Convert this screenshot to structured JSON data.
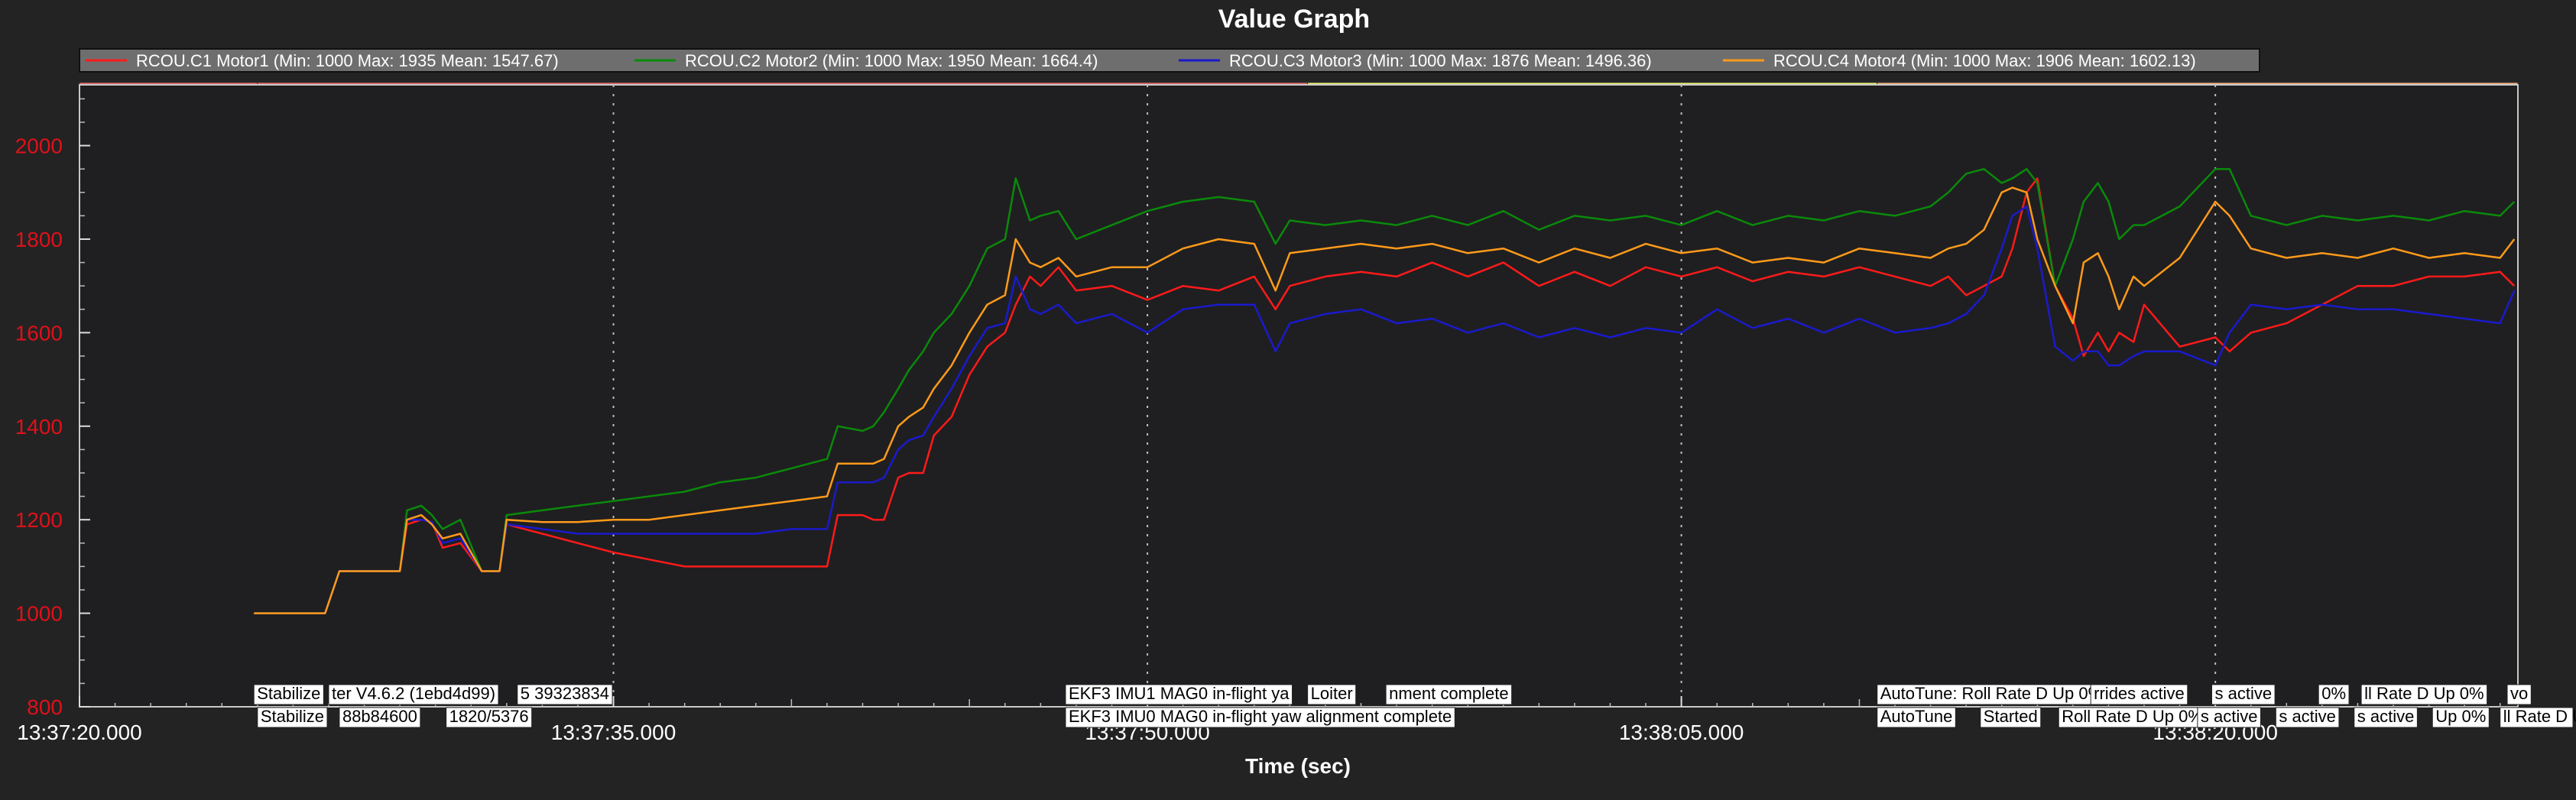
{
  "window": {
    "title": "Value Graph"
  },
  "chart_data": {
    "type": "line",
    "title": "Value Graph",
    "xlabel": "Time (sec)",
    "ylabel": "",
    "x_tick_labels": [
      "13:37:20.000",
      "13:37:35.000",
      "13:37:50.000",
      "13:38:05.000",
      "13:38:20.000"
    ],
    "x_tick_seconds": [
      0,
      15,
      30,
      45,
      60
    ],
    "xlim_seconds": [
      0,
      68.5
    ],
    "y_ticks": [
      800,
      1000,
      1200,
      1400,
      1600,
      1800,
      2000
    ],
    "ylim": [
      800,
      2130
    ],
    "grid": true,
    "legend_position": "top",
    "x_seconds": [
      4.9,
      6.9,
      7.3,
      8.1,
      8.8,
      9.0,
      9.2,
      9.6,
      9.9,
      10.2,
      10.7,
      11.3,
      11.5,
      11.8,
      12.0,
      13.0,
      14.0,
      15.0,
      16.0,
      17.0,
      18.0,
      19.0,
      20.0,
      21.0,
      21.3,
      22.0,
      22.3,
      22.6,
      23.0,
      23.3,
      23.7,
      24.0,
      24.5,
      25.0,
      25.5,
      26.0,
      26.3,
      26.7,
      27.0,
      27.5,
      28.0,
      29.0,
      30.0,
      31.0,
      32.0,
      33.0,
      33.6,
      34.0,
      35.0,
      36.0,
      37.0,
      38.0,
      39.0,
      40.0,
      41.0,
      42.0,
      43.0,
      44.0,
      45.0,
      46.0,
      47.0,
      48.0,
      49.0,
      50.0,
      51.0,
      52.0,
      52.5,
      53.0,
      53.5,
      54.0,
      54.3,
      54.7,
      55.0,
      55.5,
      56.0,
      56.3,
      56.7,
      57.0,
      57.3,
      57.7,
      58.0,
      59.0,
      60.0,
      60.4,
      61.0,
      62.0,
      63.0,
      64.0,
      65.0,
      66.0,
      67.0,
      68.0,
      68.4
    ],
    "series": [
      {
        "name": "RCOU.C1 Motor1 (Min: 1000 Max: 1935 Mean: 1547.67)",
        "color": "#ff1a1a",
        "values": [
          1000,
          1000,
          1090,
          1090,
          1090,
          1090,
          1190,
          1200,
          1195,
          1140,
          1150,
          1090,
          1090,
          1090,
          1190,
          1170,
          1150,
          1130,
          1115,
          1100,
          1100,
          1100,
          1100,
          1100,
          1210,
          1210,
          1200,
          1200,
          1290,
          1300,
          1300,
          1380,
          1420,
          1510,
          1570,
          1600,
          1660,
          1720,
          1700,
          1740,
          1690,
          1700,
          1670,
          1700,
          1690,
          1720,
          1650,
          1700,
          1720,
          1730,
          1720,
          1750,
          1720,
          1750,
          1700,
          1730,
          1700,
          1740,
          1720,
          1740,
          1710,
          1730,
          1720,
          1740,
          1720,
          1700,
          1720,
          1680,
          1700,
          1720,
          1780,
          1900,
          1930,
          1700,
          1630,
          1550,
          1600,
          1560,
          1600,
          1580,
          1660,
          1570,
          1590,
          1560,
          1600,
          1620,
          1660,
          1700,
          1700,
          1720,
          1720,
          1730,
          1700
        ]
      },
      {
        "name": "RCOU.C2 Motor2 (Min: 1000 Max: 1950 Mean: 1664.4)",
        "color": "#0a8a0a",
        "values": [
          1000,
          1000,
          1090,
          1090,
          1090,
          1090,
          1220,
          1230,
          1210,
          1180,
          1200,
          1090,
          1090,
          1090,
          1210,
          1220,
          1230,
          1240,
          1250,
          1260,
          1280,
          1290,
          1310,
          1330,
          1400,
          1390,
          1400,
          1430,
          1480,
          1520,
          1560,
          1600,
          1640,
          1700,
          1780,
          1800,
          1930,
          1840,
          1850,
          1860,
          1800,
          1830,
          1860,
          1880,
          1890,
          1880,
          1790,
          1840,
          1830,
          1840,
          1830,
          1850,
          1830,
          1860,
          1820,
          1850,
          1840,
          1850,
          1830,
          1860,
          1830,
          1850,
          1840,
          1860,
          1850,
          1870,
          1900,
          1940,
          1950,
          1920,
          1930,
          1950,
          1920,
          1700,
          1800,
          1880,
          1920,
          1880,
          1800,
          1830,
          1830,
          1870,
          1950,
          1950,
          1850,
          1830,
          1850,
          1840,
          1850,
          1840,
          1860,
          1850,
          1880
        ]
      },
      {
        "name": "RCOU.C3 Motor3 (Min: 1000 Max: 1876 Mean: 1496.36)",
        "color": "#1a1acc",
        "values": [
          1000,
          1000,
          1090,
          1090,
          1090,
          1090,
          1200,
          1200,
          1195,
          1150,
          1160,
          1090,
          1090,
          1090,
          1190,
          1180,
          1170,
          1170,
          1170,
          1170,
          1170,
          1170,
          1180,
          1180,
          1280,
          1280,
          1280,
          1290,
          1350,
          1370,
          1380,
          1420,
          1480,
          1550,
          1610,
          1620,
          1720,
          1650,
          1640,
          1660,
          1620,
          1640,
          1600,
          1650,
          1660,
          1660,
          1560,
          1620,
          1640,
          1650,
          1620,
          1630,
          1600,
          1620,
          1590,
          1610,
          1590,
          1610,
          1600,
          1650,
          1610,
          1630,
          1600,
          1630,
          1600,
          1610,
          1620,
          1640,
          1680,
          1780,
          1850,
          1870,
          1780,
          1570,
          1540,
          1560,
          1560,
          1530,
          1530,
          1550,
          1560,
          1560,
          1530,
          1600,
          1660,
          1650,
          1660,
          1650,
          1650,
          1640,
          1630,
          1620,
          1690
        ]
      },
      {
        "name": "RCOU.C4 Motor4 (Min: 1000 Max: 1906 Mean: 1602.13)",
        "color": "#ff9a1a",
        "values": [
          1000,
          1000,
          1090,
          1090,
          1090,
          1090,
          1200,
          1210,
          1190,
          1160,
          1170,
          1090,
          1090,
          1090,
          1200,
          1195,
          1195,
          1200,
          1200,
          1210,
          1220,
          1230,
          1240,
          1250,
          1320,
          1320,
          1320,
          1330,
          1400,
          1420,
          1440,
          1480,
          1530,
          1600,
          1660,
          1680,
          1800,
          1750,
          1740,
          1760,
          1720,
          1740,
          1740,
          1780,
          1800,
          1790,
          1690,
          1770,
          1780,
          1790,
          1780,
          1790,
          1770,
          1780,
          1750,
          1780,
          1760,
          1790,
          1770,
          1780,
          1750,
          1760,
          1750,
          1780,
          1770,
          1760,
          1780,
          1790,
          1820,
          1900,
          1910,
          1900,
          1800,
          1700,
          1620,
          1750,
          1770,
          1720,
          1650,
          1720,
          1700,
          1760,
          1880,
          1850,
          1780,
          1760,
          1770,
          1760,
          1780,
          1760,
          1770,
          1760,
          1800
        ]
      }
    ],
    "mode_bands": [
      {
        "from_seconds": 0,
        "to_seconds": 5.0,
        "color": "#f06b6b"
      },
      {
        "from_seconds": 5.0,
        "to_seconds": 34.5,
        "color": "#f06b6b"
      },
      {
        "from_seconds": 34.5,
        "to_seconds": 50.5,
        "color": "#eaf56b"
      },
      {
        "from_seconds": 50.5,
        "to_seconds": 68.5,
        "color": "#f4b383"
      }
    ],
    "message_rows": [
      [
        {
          "text": "Stabilize",
          "at_seconds": 4.9
        },
        {
          "text": "ter V4.6.2 (1ebd4d99)",
          "at_seconds": 7.0
        },
        {
          "text": "5 39323834",
          "at_seconds": 12.3
        },
        {
          "text": "EKF3 IMU1 MAG0 in-flight ya",
          "at_seconds": 27.7
        },
        {
          "text": "Loiter",
          "at_seconds": 34.5
        },
        {
          "text": "nment complete",
          "at_seconds": 36.7
        },
        {
          "text": "AutoTune: Roll Rate D Up 0%",
          "at_seconds": 50.5
        },
        {
          "text": "rrides active",
          "at_seconds": 56.5
        },
        {
          "text": "s active",
          "at_seconds": 59.9
        },
        {
          "text": "0%",
          "at_seconds": 62.9
        },
        {
          "text": "ll Rate D Up 0%",
          "at_seconds": 64.1
        },
        {
          "text": "vo",
          "at_seconds": 68.2
        }
      ],
      [
        {
          "text": "Stabilize",
          "at_seconds": 5.0
        },
        {
          "text": "88b84600",
          "at_seconds": 7.3
        },
        {
          "text": "1820/5376",
          "at_seconds": 10.3
        },
        {
          "text": "EKF3 IMU0 MAG0 in-flight yaw alignment complete",
          "at_seconds": 27.7
        },
        {
          "text": "AutoTune",
          "at_seconds": 50.5
        },
        {
          "text": "Started",
          "at_seconds": 53.4
        },
        {
          "text": "Roll Rate D Up 0%",
          "at_seconds": 55.6
        },
        {
          "text": "s active",
          "at_seconds": 59.5
        },
        {
          "text": "s active",
          "at_seconds": 61.7
        },
        {
          "text": "s active",
          "at_seconds": 63.9
        },
        {
          "text": "Up 0%",
          "at_seconds": 66.1
        },
        {
          "text": "ll Rate D Up",
          "at_seconds": 68.0
        }
      ]
    ]
  }
}
